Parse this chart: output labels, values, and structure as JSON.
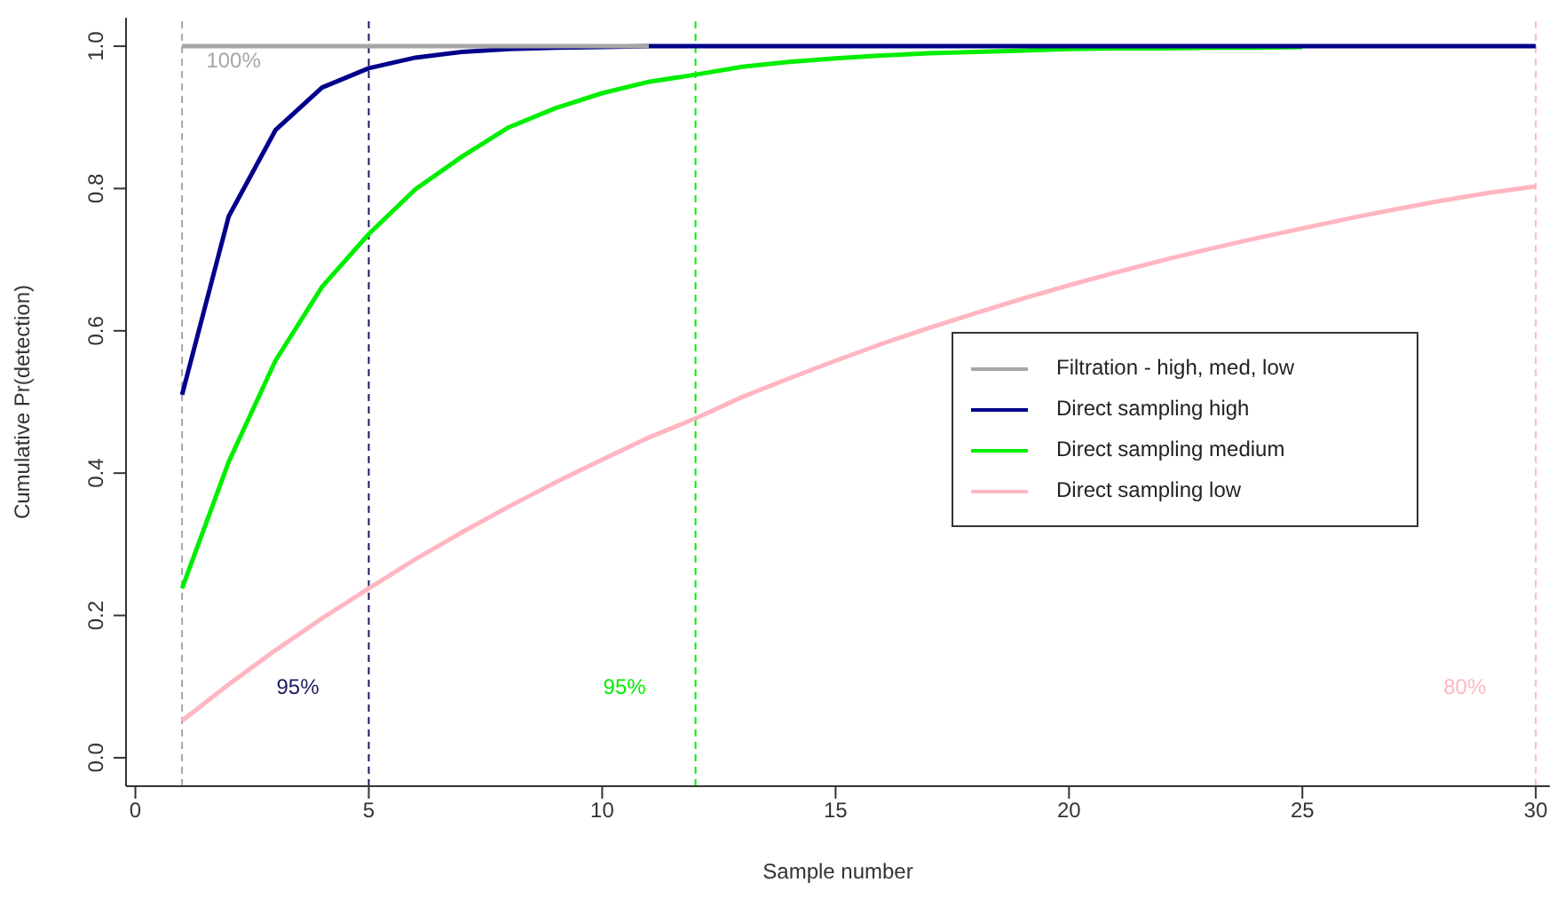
{
  "chart_data": {
    "type": "line",
    "xlabel": "Sample number",
    "ylabel": "Cumulative Pr(detection)",
    "x": [
      1,
      2,
      3,
      4,
      5,
      6,
      7,
      8,
      9,
      10,
      11,
      12,
      13,
      14,
      15,
      16,
      17,
      18,
      19,
      20,
      21,
      22,
      23,
      24,
      25,
      26,
      27,
      28,
      29,
      30
    ],
    "series": [
      {
        "name": "Filtration - high, med, low",
        "color": "#a6a6a6",
        "values": [
          1,
          1,
          1,
          1,
          1,
          1,
          1,
          1,
          1,
          1,
          1,
          null,
          null,
          null,
          null,
          null,
          null,
          null,
          null,
          null,
          null,
          null,
          null,
          null,
          null,
          null,
          null,
          null,
          null,
          null
        ]
      },
      {
        "name": "Direct sampling high",
        "color": "#00008b",
        "values": [
          0.51,
          0.761,
          0.882,
          0.942,
          0.969,
          0.984,
          0.992,
          0.996,
          0.998,
          0.999,
          1,
          1,
          1,
          1,
          1,
          1,
          1,
          1,
          1,
          1,
          1,
          1,
          1,
          1,
          1,
          1,
          1,
          1,
          1,
          1
        ]
      },
      {
        "name": "Direct sampling medium",
        "color": "#00ee00",
        "values": [
          0.238,
          0.416,
          0.558,
          0.662,
          0.736,
          0.799,
          0.845,
          0.886,
          0.913,
          0.934,
          0.95,
          0.96,
          0.971,
          0.978,
          0.983,
          0.987,
          0.99,
          0.992,
          0.994,
          0.996,
          0.997,
          0.997,
          0.998,
          0.998,
          0.999,
          null,
          null,
          null,
          null,
          null
        ]
      },
      {
        "name": "Direct sampling low",
        "color": "#ffb6c1",
        "values": [
          0.052,
          0.103,
          0.151,
          0.196,
          0.238,
          0.279,
          0.317,
          0.353,
          0.387,
          0.419,
          0.45,
          0.477,
          0.507,
          0.533,
          0.558,
          0.582,
          0.604,
          0.625,
          0.645,
          0.664,
          0.682,
          0.699,
          0.715,
          0.73,
          0.744,
          0.758,
          0.771,
          0.783,
          0.794,
          0.803
        ]
      }
    ],
    "xlim": [
      -0.2,
      30.3
    ],
    "xticks": [
      0,
      5,
      10,
      15,
      20,
      25,
      30
    ],
    "ylim": [
      -0.04,
      1.04
    ],
    "yticks": [
      {
        "value": 0,
        "label": "0.0"
      },
      0.2,
      0.4,
      0.6,
      0.8,
      {
        "value": 1,
        "label": "1.0"
      }
    ],
    "ref_lines": [
      {
        "axis": "x",
        "value": 1,
        "color": "#a6a6a6",
        "line_style": "dashed"
      },
      {
        "axis": "x",
        "value": 5,
        "color": "#1a1a5e",
        "line_style": "dashed"
      },
      {
        "axis": "x",
        "value": 12,
        "color": "#00ee00",
        "line_style": "dashed"
      },
      {
        "axis": "x",
        "value": 30,
        "color": "#ffb6c1",
        "line_style": "dashed"
      }
    ],
    "annotations": [
      "100%",
      "95%",
      "95%",
      "80%"
    ],
    "legend": "right",
    "grid": false,
    "marker": "none",
    "line_style": "solid"
  }
}
